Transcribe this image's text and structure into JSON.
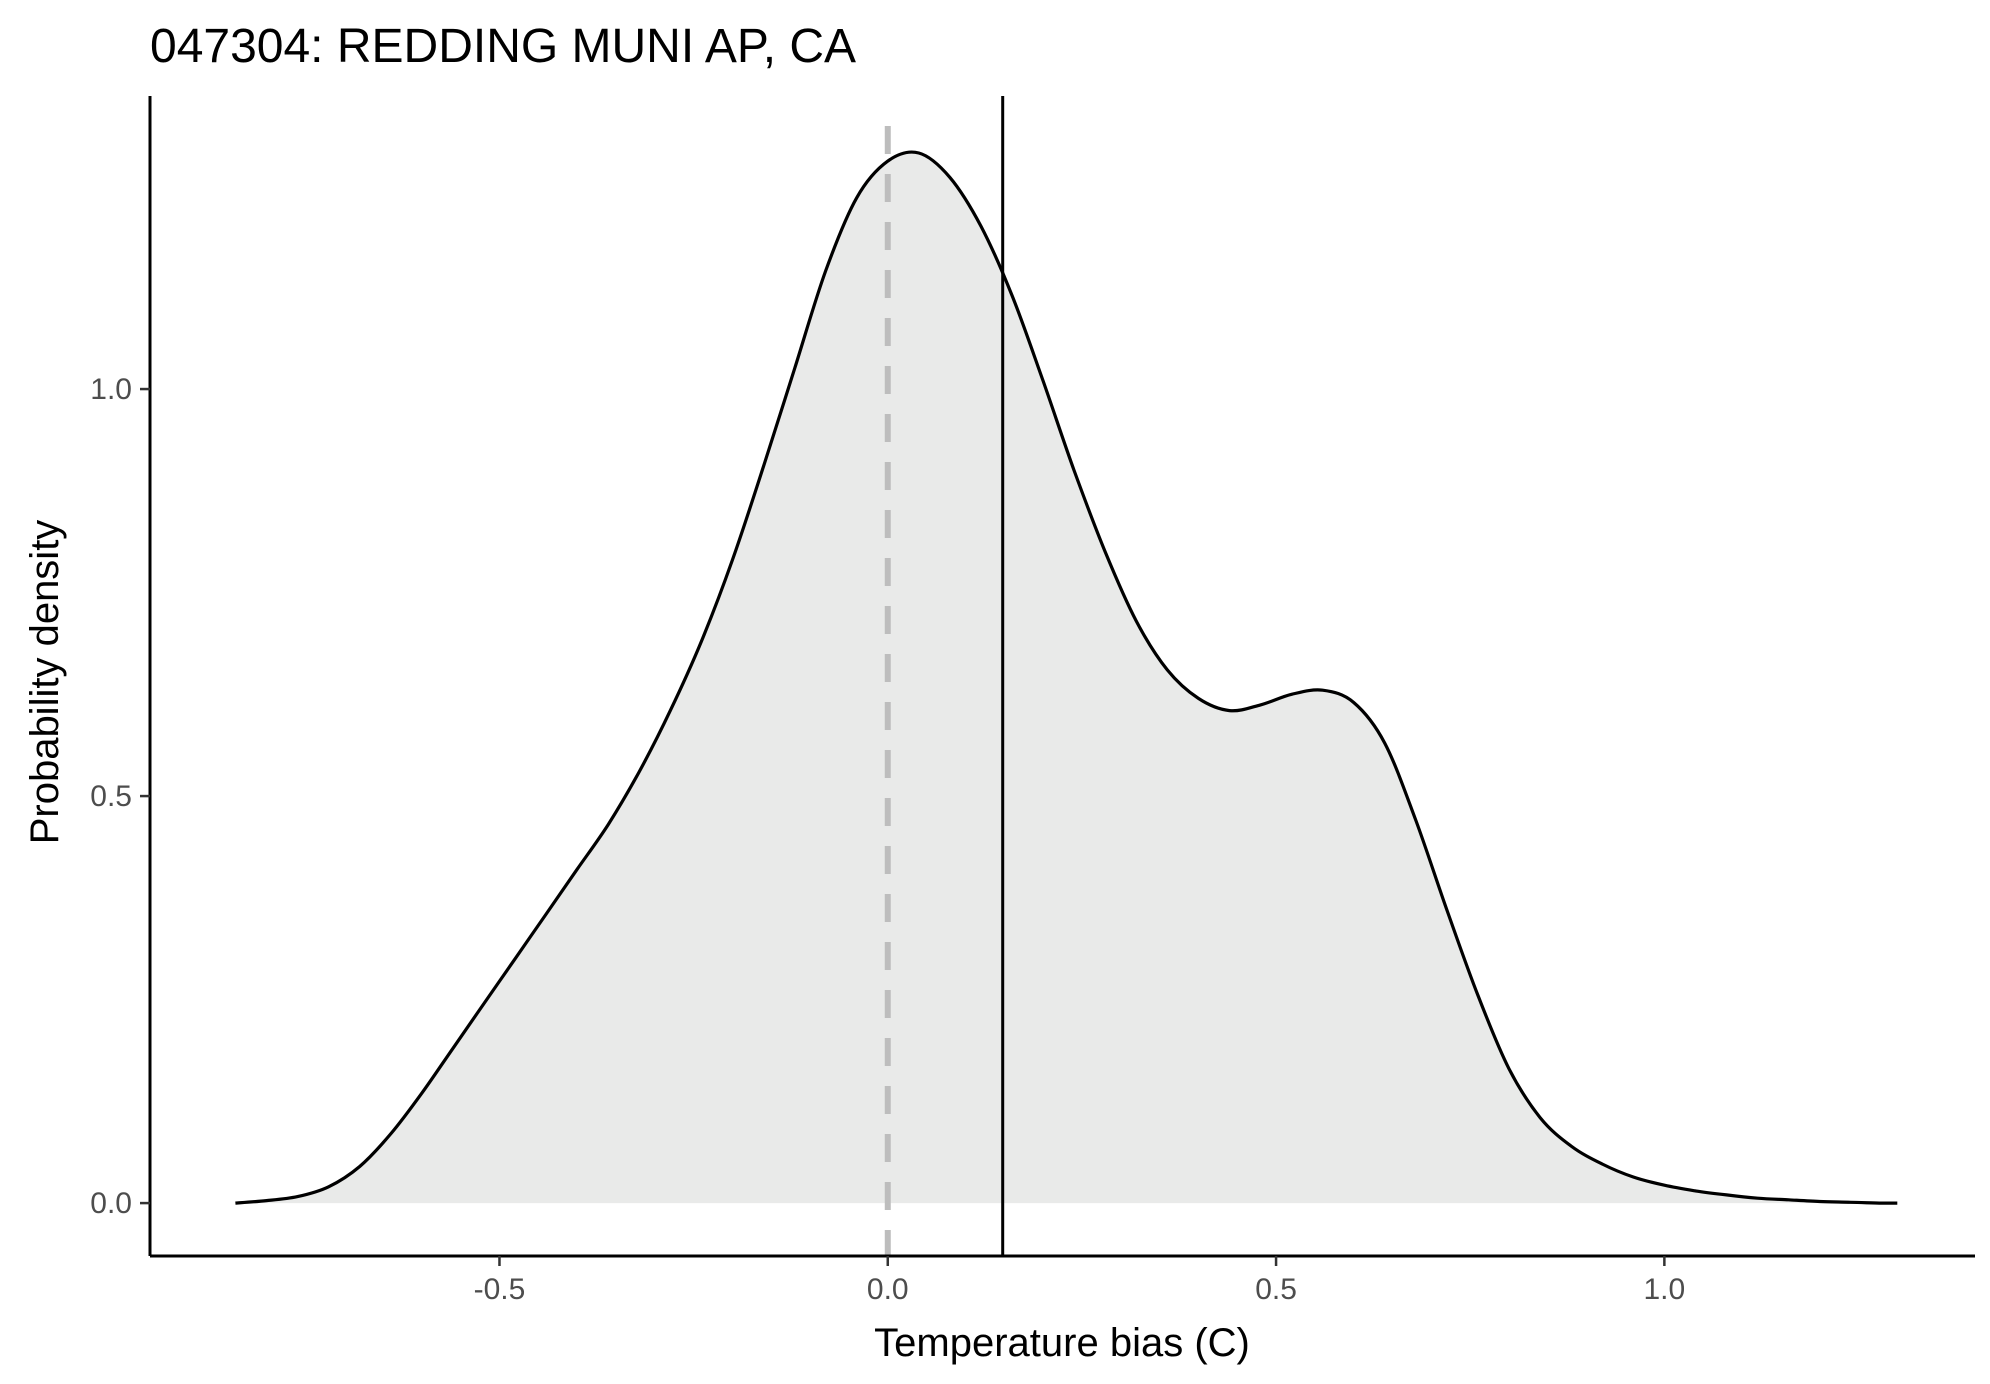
{
  "chart_data": {
    "type": "area",
    "title": "047304: REDDING MUNI AP, CA",
    "xlabel": "Temperature bias (C)",
    "ylabel": "Probability density",
    "xlim": [
      -0.95,
      1.4
    ],
    "ylim": [
      -0.065,
      1.36
    ],
    "xticks": [
      -0.5,
      0.0,
      0.5,
      1.0
    ],
    "xtick_labels": [
      "-0.5",
      "0.0",
      "0.5",
      "1.0"
    ],
    "yticks": [
      0.0,
      0.5,
      1.0
    ],
    "ytick_labels": [
      "0.0",
      "0.5",
      "1.0"
    ],
    "grid": false,
    "fill_color": "#e9eae9",
    "line_color": "#000000",
    "zero_line": {
      "x": 0.0,
      "style": "dashed",
      "color": "#bdbdbd"
    },
    "mean_line": {
      "x": 0.148,
      "style": "solid",
      "color": "#000000"
    },
    "series": [
      {
        "x": [
          -0.84,
          -0.8,
          -0.76,
          -0.72,
          -0.68,
          -0.64,
          -0.6,
          -0.56,
          -0.52,
          -0.48,
          -0.44,
          -0.4,
          -0.36,
          -0.32,
          -0.28,
          -0.24,
          -0.2,
          -0.16,
          -0.12,
          -0.08,
          -0.04,
          0.0,
          0.04,
          0.08,
          0.12,
          0.16,
          0.2,
          0.24,
          0.28,
          0.32,
          0.36,
          0.4,
          0.44,
          0.48,
          0.52,
          0.56,
          0.6,
          0.64,
          0.68,
          0.72,
          0.76,
          0.8,
          0.84,
          0.88,
          0.92,
          0.96,
          1.0,
          1.04,
          1.08,
          1.12,
          1.16,
          1.2,
          1.24,
          1.28,
          1.3
        ],
        "y": [
          0.0,
          0.003,
          0.008,
          0.02,
          0.045,
          0.085,
          0.135,
          0.19,
          0.245,
          0.3,
          0.355,
          0.41,
          0.465,
          0.53,
          0.605,
          0.69,
          0.79,
          0.905,
          1.025,
          1.145,
          1.235,
          1.28,
          1.29,
          1.26,
          1.2,
          1.115,
          1.01,
          0.9,
          0.8,
          0.715,
          0.655,
          0.62,
          0.605,
          0.612,
          0.625,
          0.63,
          0.615,
          0.565,
          0.47,
          0.36,
          0.255,
          0.165,
          0.105,
          0.07,
          0.048,
          0.032,
          0.022,
          0.015,
          0.01,
          0.006,
          0.004,
          0.002,
          0.001,
          0.0,
          0.0
        ]
      }
    ]
  }
}
